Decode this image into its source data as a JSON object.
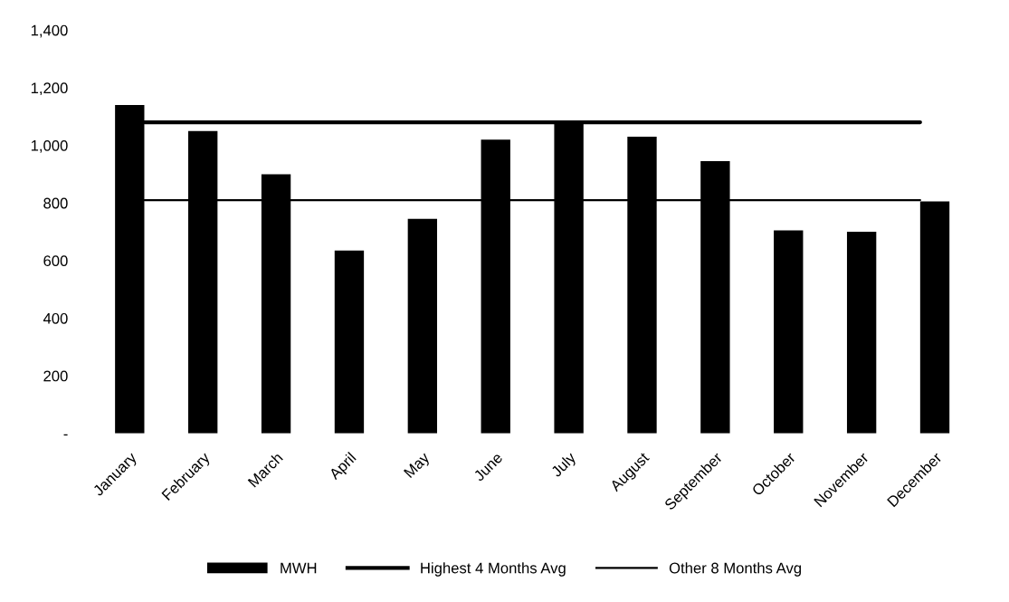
{
  "chart_data": {
    "type": "bar",
    "categories": [
      "January",
      "February",
      "March",
      "April",
      "May",
      "June",
      "July",
      "August",
      "September",
      "October",
      "November",
      "December"
    ],
    "series": [
      {
        "name": "MWH",
        "color": "#000000",
        "values": [
          1140,
          1050,
          900,
          635,
          745,
          1020,
          1080,
          1030,
          945,
          705,
          700,
          805
        ]
      }
    ],
    "ref_lines": [
      {
        "axis": "y",
        "value": 1080,
        "label": "Highest 4 Months Avg",
        "color": "#000000",
        "line_style": "solid"
      },
      {
        "axis": "y",
        "value": 810,
        "label": "Other 8 Months Avg",
        "color": "#000000",
        "line_style": "solid"
      }
    ],
    "ylim": [
      0,
      1400
    ],
    "yticks": [
      {
        "value": 0,
        "label": "-"
      },
      {
        "value": 200,
        "label": "200"
      },
      {
        "value": 400,
        "label": "400"
      },
      {
        "value": 600,
        "label": "600"
      },
      {
        "value": 800,
        "label": "800"
      },
      {
        "value": 1000,
        "label": "1,000"
      },
      {
        "value": 1200,
        "label": "1,200"
      },
      {
        "value": 1400,
        "label": "1,400"
      }
    ],
    "grid": false,
    "legend": "bottom"
  }
}
